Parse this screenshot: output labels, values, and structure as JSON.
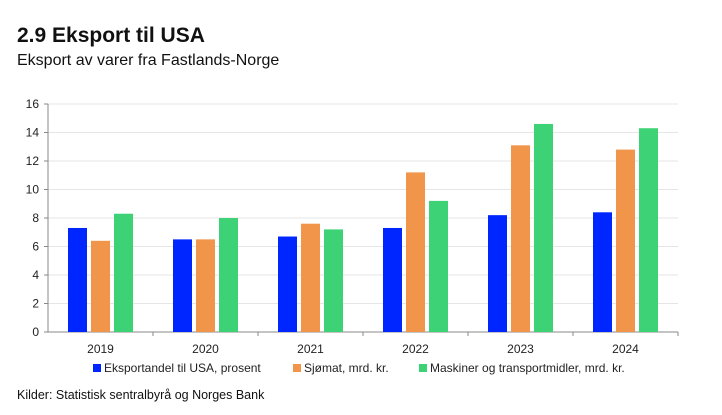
{
  "chart_data": {
    "type": "bar",
    "title": "2.9 Eksport til USA",
    "subtitle": "Eksport av varer fra Fastlands-Norge",
    "source": "Kilder: Statistisk sentralbyrå og Norges Bank",
    "categories": [
      "2019",
      "2020",
      "2021",
      "2022",
      "2023",
      "2024"
    ],
    "series": [
      {
        "name": "Eksportandel til USA, prosent",
        "color": "#0026ff",
        "values": [
          7.3,
          6.5,
          6.7,
          7.3,
          8.2,
          8.4
        ]
      },
      {
        "name": "Sjømat, mrd. kr.",
        "color": "#f0954a",
        "values": [
          6.4,
          6.5,
          7.6,
          11.2,
          13.1,
          12.8
        ]
      },
      {
        "name": "Maskiner og transportmidler, mrd. kr.",
        "color": "#3dd275",
        "values": [
          8.3,
          8.0,
          7.2,
          9.2,
          14.6,
          14.3
        ]
      }
    ],
    "ylim": [
      0,
      16
    ],
    "yticks": [
      0,
      2,
      4,
      6,
      8,
      10,
      12,
      14,
      16
    ],
    "grid": true,
    "legend": "bottom"
  }
}
